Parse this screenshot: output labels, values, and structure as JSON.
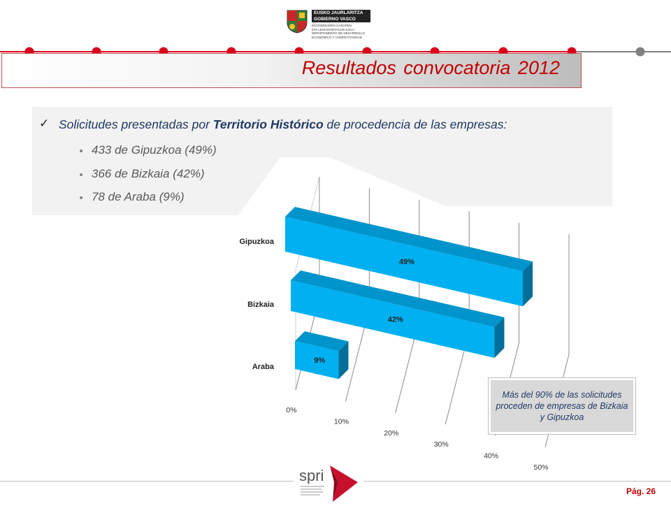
{
  "header": {
    "gov_line1": "EUSKO JAURLARITZA",
    "gov_line2": "GOBIERNO VASCO",
    "gov_dept": [
      "EKONOMIAREN GARAPEN",
      "ETA LEHIAKORTASUN SAILA",
      "DEPARTAMENTO DE DESARROLLO",
      "ECONÓMICO Y COMPETITIVIDAD"
    ]
  },
  "slide": {
    "title": "Resultados convocatoria 2012",
    "intro_prefix": "Solicitudes presentadas por ",
    "intro_bold": "Territorio Histórico",
    "intro_suffix": " de procedencia de las empresas:",
    "bullets": [
      "433 de Gipuzkoa (49%)",
      "366 de Bizkaia (42%)",
      "78 de Araba (9%)"
    ],
    "callout": "Más del 90% de las solicitudes proceden de empresas de Bizkaia y Gipuzkoa"
  },
  "chart_data": {
    "type": "bar",
    "orientation": "horizontal",
    "categories": [
      "Gipuzkoa",
      "Bizkaia",
      "Araba"
    ],
    "values": [
      49,
      42,
      9
    ],
    "value_labels": [
      "49%",
      "42%",
      "9%"
    ],
    "x_ticks": [
      "0%",
      "10%",
      "20%",
      "30%",
      "40%",
      "50%"
    ],
    "xlim": [
      0,
      50
    ],
    "grid": true,
    "color": "#00b0f0"
  },
  "footer": {
    "logo_text": "spri",
    "page": "Pág. 26"
  },
  "colors": {
    "accent_red": "#c00000",
    "timeline_red": "#d9001b",
    "timeline_gray": "#808080",
    "panel_gray": "#f2f2f2"
  }
}
